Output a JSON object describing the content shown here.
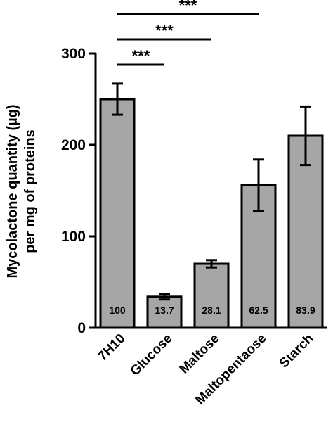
{
  "chart_data": {
    "type": "bar",
    "categories": [
      "7H10",
      "Glucose",
      "Maltose",
      "Maltopentaose",
      "Starch"
    ],
    "values": [
      250,
      34,
      70,
      156,
      210
    ],
    "errors": [
      17,
      3,
      4,
      28,
      32
    ],
    "data_labels": [
      "100",
      "13.7",
      "28.1",
      "62.5",
      "83.9"
    ],
    "ylabel_line1": "Mycolactone quantity (µg)",
    "ylabel_line2": "per mg of proteins",
    "ylim": [
      0,
      300
    ],
    "yticks": [
      0,
      100,
      200,
      300
    ],
    "ytick_labels": [
      "0",
      "100",
      "200",
      "300"
    ],
    "bar_color": "#a6a6a6",
    "significance": [
      {
        "from": "7H10",
        "to": "Glucose",
        "label": "***"
      },
      {
        "from": "7H10",
        "to": "Maltose",
        "label": "***"
      },
      {
        "from": "7H10",
        "to": "Maltopentaose",
        "label": "***"
      }
    ]
  }
}
